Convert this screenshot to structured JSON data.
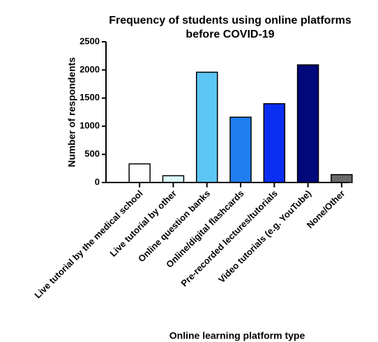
{
  "chart_data": {
    "type": "bar",
    "title": [
      "Frequency of students using online platforms",
      "before COVID-19"
    ],
    "y_label": "Number of respondents",
    "x_label": "Online learning platform type",
    "categories": [
      "Live tutorial by the medical school",
      "Live tutorial by other",
      "Online question banks",
      "Online/digital flashcards",
      "Pre-recorded lectures/tutorials",
      "Video tutorials (e.g. YouTube)",
      "None/Other"
    ],
    "values": [
      330,
      120,
      1960,
      1160,
      1400,
      2090,
      140
    ],
    "colors": [
      "#ffffff",
      "#dcfbfb",
      "#5cc6f5",
      "#1f7ff2",
      "#0a2ef2",
      "#00087a",
      "#6b6b6b"
    ],
    "ylim": [
      0,
      2500
    ],
    "yticks": [
      0,
      500,
      1000,
      1500,
      2000,
      2500
    ]
  }
}
